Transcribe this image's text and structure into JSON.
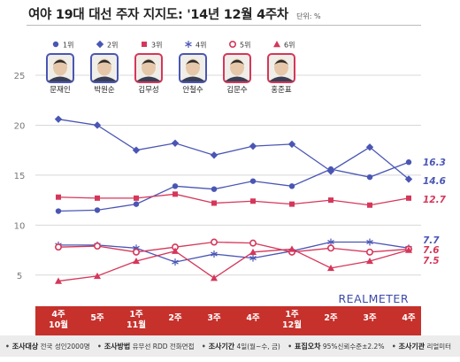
{
  "header": {
    "title": "여야 19대 대선 주자 지지도: '14년 12월 4주차",
    "unit": "단위: %"
  },
  "watermark": "REALMETER",
  "colors": {
    "blue": "#4a56b4",
    "red": "#d5375a",
    "band": "#c6312c",
    "band_text": "#ffffff",
    "grid": "#d8d8d8",
    "axis_text": "#777777"
  },
  "legend": [
    {
      "rank": "1위",
      "marker": "circle",
      "color": "#4a56b4",
      "candidate": "문재인"
    },
    {
      "rank": "2위",
      "marker": "diamond",
      "color": "#4a56b4",
      "candidate": "박원순"
    },
    {
      "rank": "3위",
      "marker": "square",
      "color": "#d5375a",
      "candidate": "김무성"
    },
    {
      "rank": "4위",
      "marker": "asterisk",
      "color": "#4a56b4",
      "candidate": "안철수"
    },
    {
      "rank": "5위",
      "marker": "circle-open",
      "color": "#d5375a",
      "candidate": "김문수"
    },
    {
      "rank": "6위",
      "marker": "triangle",
      "color": "#d5375a",
      "candidate": "홍준표"
    }
  ],
  "chart_data": {
    "type": "line",
    "title": "여야 19대 대선 주자 지지도: '14년 12월 4주차",
    "unit": "단위: %",
    "categories": [
      "4주\n10월",
      "5주",
      "1주\n11월",
      "2주",
      "3주",
      "4주",
      "1주\n12월",
      "2주",
      "3주",
      "4주"
    ],
    "ylim": [
      2.5,
      25
    ],
    "yticks": [
      5,
      10,
      15,
      20,
      25
    ],
    "grid": true,
    "series": [
      {
        "name": "1위",
        "color": "#4a56b4",
        "marker": "circle",
        "values": [
          11.4,
          11.5,
          12.1,
          13.9,
          13.6,
          14.4,
          13.9,
          15.6,
          14.8,
          16.3
        ],
        "end_label": "16.3"
      },
      {
        "name": "2위",
        "color": "#4a56b4",
        "marker": "diamond",
        "values": [
          20.6,
          20.0,
          17.5,
          18.2,
          17.0,
          17.9,
          18.1,
          15.4,
          17.8,
          14.6
        ],
        "end_label": "14.6"
      },
      {
        "name": "3위",
        "color": "#d5375a",
        "marker": "square",
        "values": [
          12.8,
          12.7,
          12.7,
          13.1,
          12.2,
          12.4,
          12.1,
          12.5,
          12.0,
          12.7
        ],
        "end_label": "12.7"
      },
      {
        "name": "4위",
        "color": "#4a56b4",
        "marker": "asterisk",
        "values": [
          8.0,
          8.0,
          7.7,
          6.3,
          7.1,
          6.7,
          7.4,
          8.3,
          8.3,
          7.7
        ],
        "end_label": "7.7"
      },
      {
        "name": "5위",
        "color": "#d5375a",
        "marker": "circle-open",
        "values": [
          7.8,
          7.9,
          7.3,
          7.8,
          8.3,
          8.2,
          7.3,
          7.7,
          7.3,
          7.6
        ],
        "end_label": "7.6"
      },
      {
        "name": "6위",
        "color": "#d5375a",
        "marker": "triangle",
        "values": [
          4.4,
          4.9,
          6.4,
          7.4,
          4.7,
          7.3,
          7.6,
          5.7,
          6.4,
          7.5
        ],
        "end_label": "7.5"
      }
    ]
  },
  "footer": [
    {
      "key": "조사대상",
      "value": "전국 성인2000명"
    },
    {
      "key": "조사방법",
      "value": "유무선 RDD 전화면접"
    },
    {
      "key": "조사기간",
      "value": "4일(월~수, 금)"
    },
    {
      "key": "표집오차",
      "value": "95%신뢰수준±2.2%"
    },
    {
      "key": "조사기관",
      "value": "리얼미터"
    }
  ]
}
